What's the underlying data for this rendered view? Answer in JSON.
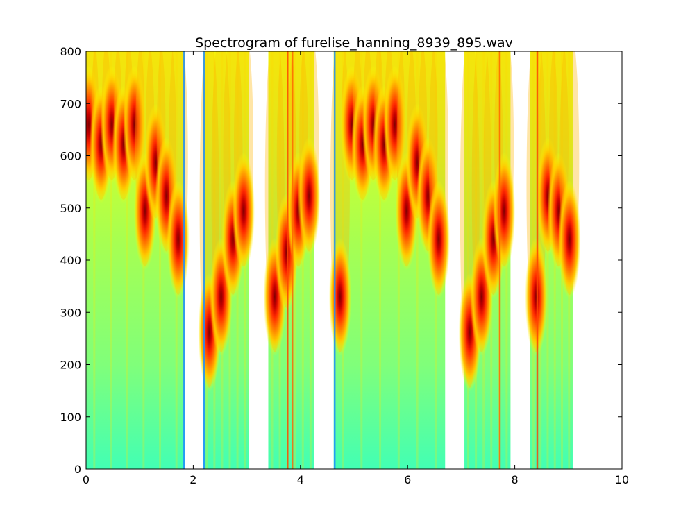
{
  "chart_data": {
    "type": "heatmap",
    "title": "Spectrogram of furelise_hanning_8939_895.wav",
    "xlabel": "",
    "ylabel": "",
    "xlim": [
      0,
      10
    ],
    "ylim": [
      0,
      800
    ],
    "x_ticks": [
      0,
      2,
      4,
      6,
      8,
      10
    ],
    "y_ticks": [
      0,
      100,
      200,
      300,
      400,
      500,
      600,
      700,
      800
    ],
    "x_tick_labels": [
      "0",
      "2",
      "4",
      "6",
      "8",
      "10"
    ],
    "y_tick_labels": [
      "0",
      "100",
      "200",
      "300",
      "400",
      "500",
      "600",
      "700",
      "800"
    ],
    "colormap": "jet",
    "grid": false,
    "background_color": "#80ff7a",
    "segments": [
      {
        "x_start": 0.0,
        "x_end": 1.84
      },
      {
        "x_start": 2.18,
        "x_end": 3.04
      },
      {
        "x_start": 3.4,
        "x_end": 4.26
      },
      {
        "x_start": 4.62,
        "x_end": 6.7
      },
      {
        "x_start": 7.06,
        "x_end": 7.92
      },
      {
        "x_start": 8.28,
        "x_end": 9.08
      }
    ],
    "note_peaks": [
      {
        "x": 0.05,
        "freq": 660
      },
      {
        "x": 0.28,
        "freq": 622
      },
      {
        "x": 0.48,
        "freq": 660
      },
      {
        "x": 0.7,
        "freq": 622
      },
      {
        "x": 0.9,
        "freq": 660
      },
      {
        "x": 1.1,
        "freq": 494
      },
      {
        "x": 1.3,
        "freq": 587
      },
      {
        "x": 1.5,
        "freq": 523
      },
      {
        "x": 1.72,
        "freq": 440
      },
      {
        "x": 2.3,
        "freq": 262
      },
      {
        "x": 2.52,
        "freq": 330
      },
      {
        "x": 2.74,
        "freq": 440
      },
      {
        "x": 2.94,
        "freq": 494
      },
      {
        "x": 3.52,
        "freq": 330
      },
      {
        "x": 3.74,
        "freq": 415
      },
      {
        "x": 3.96,
        "freq": 494
      },
      {
        "x": 4.16,
        "freq": 523
      },
      {
        "x": 4.74,
        "freq": 330
      },
      {
        "x": 4.96,
        "freq": 660
      },
      {
        "x": 5.16,
        "freq": 622
      },
      {
        "x": 5.36,
        "freq": 660
      },
      {
        "x": 5.56,
        "freq": 622
      },
      {
        "x": 5.76,
        "freq": 660
      },
      {
        "x": 5.98,
        "freq": 494
      },
      {
        "x": 6.18,
        "freq": 587
      },
      {
        "x": 6.38,
        "freq": 523
      },
      {
        "x": 6.58,
        "freq": 440
      },
      {
        "x": 7.16,
        "freq": 262
      },
      {
        "x": 7.38,
        "freq": 330
      },
      {
        "x": 7.6,
        "freq": 440
      },
      {
        "x": 7.8,
        "freq": 494
      },
      {
        "x": 8.4,
        "freq": 330
      },
      {
        "x": 8.62,
        "freq": 523
      },
      {
        "x": 8.82,
        "freq": 494
      },
      {
        "x": 9.02,
        "freq": 440
      }
    ],
    "vertical_stripes": [
      {
        "x": 1.83,
        "color": "#1e8cff"
      },
      {
        "x": 2.2,
        "color": "#1e8cff"
      },
      {
        "x": 3.76,
        "color": "#ff4400"
      },
      {
        "x": 3.85,
        "color": "#ff6600"
      },
      {
        "x": 4.64,
        "color": "#1e8cff"
      },
      {
        "x": 7.72,
        "color": "#ff6600"
      },
      {
        "x": 8.42,
        "color": "#ff4400"
      }
    ]
  }
}
